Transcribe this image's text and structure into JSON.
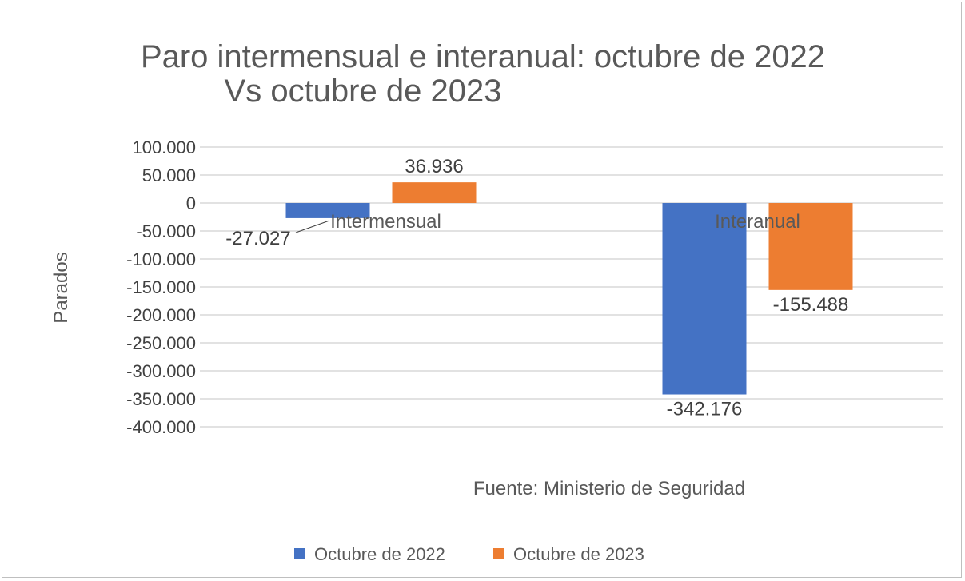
{
  "chart_data": {
    "type": "bar",
    "title": [
      "Paro intermensual e interanual: octubre de 2022",
      "Vs octubre de 2023"
    ],
    "ylabel": "Parados",
    "xlabel": "",
    "categories": [
      "Intermensual",
      "Interanual"
    ],
    "series": [
      {
        "name": "Octubre de 2022",
        "color": "#4472C4",
        "values": [
          -27027,
          -342176
        ],
        "labels": [
          "-27.027",
          "-342.176"
        ]
      },
      {
        "name": "Octubre de 2023",
        "color": "#ED7D31",
        "values": [
          36936,
          -155488
        ],
        "labels": [
          "36.936",
          "-155.488"
        ]
      }
    ],
    "ylim": [
      -400000,
      100000
    ],
    "yticks": [
      100000,
      50000,
      0,
      -50000,
      -100000,
      -150000,
      -200000,
      -250000,
      -300000,
      -350000,
      -400000
    ],
    "ytick_labels": [
      "100.000",
      "50.000",
      "0",
      "-50.000",
      "-100.000",
      "-150.000",
      "-200.000",
      "-250.000",
      "-300.000",
      "-350.000",
      "-400.000"
    ],
    "grid": true,
    "legend": "bottom",
    "annotation": "Fuente: Ministerio de Seguridad"
  }
}
